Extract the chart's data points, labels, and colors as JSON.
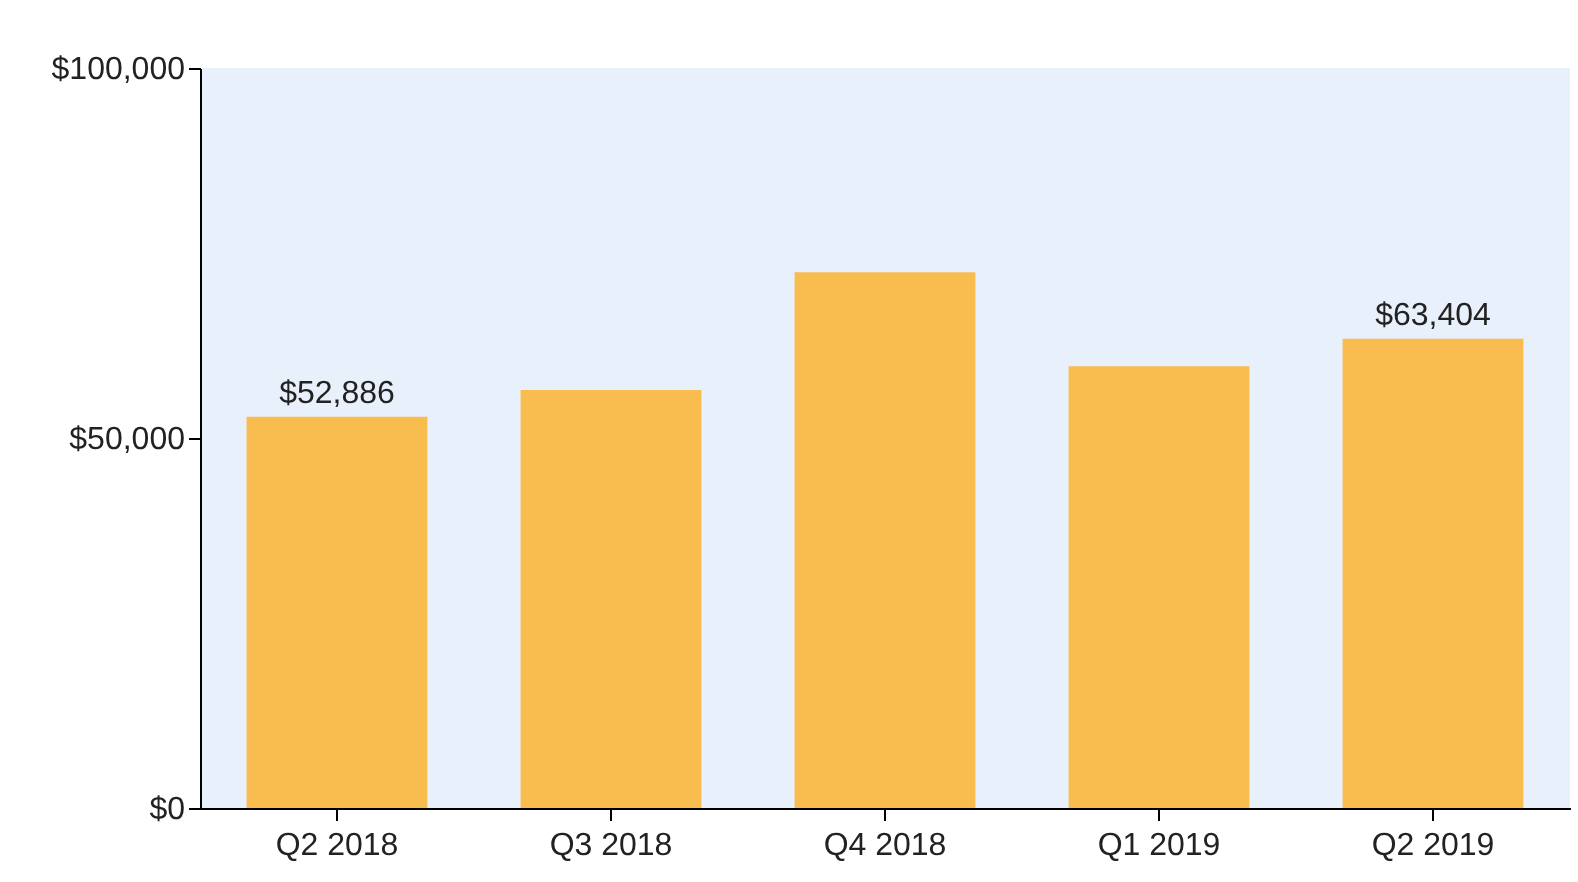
{
  "chart_data": {
    "type": "bar",
    "categories": [
      "Q2 2018",
      "Q3 2018",
      "Q4 2018",
      "Q1 2019",
      "Q2 2019"
    ],
    "values": [
      52886,
      56500,
      72400,
      59700,
      63404
    ],
    "value_labels": [
      "$52,886",
      null,
      null,
      null,
      "$63,404"
    ],
    "color": "#f9bc4f",
    "ylim": [
      0,
      100000
    ],
    "yticks": [
      {
        "value": 0,
        "label": "$0"
      },
      {
        "value": 50000,
        "label": "$50,000"
      },
      {
        "value": 100000,
        "label": "$100,000"
      }
    ],
    "grid": false
  }
}
